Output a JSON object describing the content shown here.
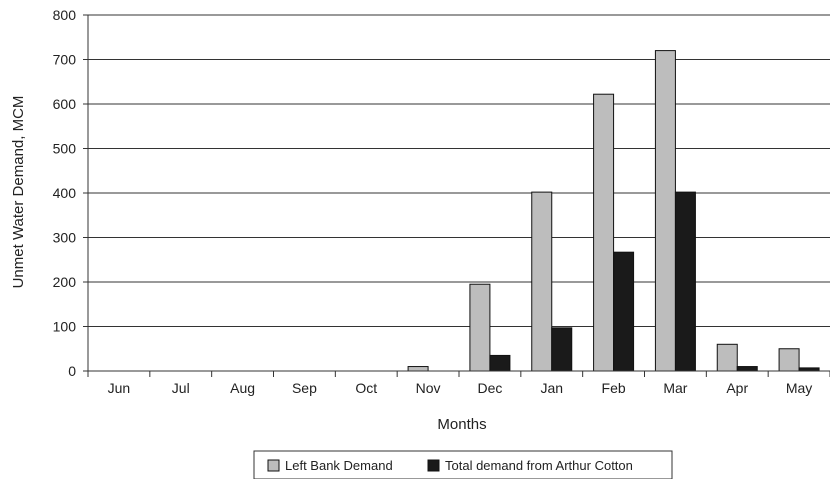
{
  "chart_data": {
    "type": "bar",
    "categories": [
      "Jun",
      "Jul",
      "Aug",
      "Sep",
      "Oct",
      "Nov",
      "Dec",
      "Jan",
      "Feb",
      "Mar",
      "Apr",
      "May"
    ],
    "series": [
      {
        "name": "Left Bank Demand",
        "color": "#bdbdbd",
        "values": [
          0,
          0,
          0,
          0,
          0,
          10,
          195,
          402,
          622,
          720,
          60,
          50
        ]
      },
      {
        "name": "Total demand from Arthur Cotton",
        "color": "#1a1a1a",
        "values": [
          0,
          0,
          0,
          0,
          0,
          0,
          35,
          97,
          267,
          402,
          10,
          7
        ]
      }
    ],
    "xlabel": "Months",
    "ylabel": "Unmet Water Demand, MCM",
    "ylim": [
      0,
      800
    ],
    "yticks": [
      0,
      100,
      200,
      300,
      400,
      500,
      600,
      700,
      800
    ],
    "grid": true,
    "legend_position": "bottom"
  }
}
